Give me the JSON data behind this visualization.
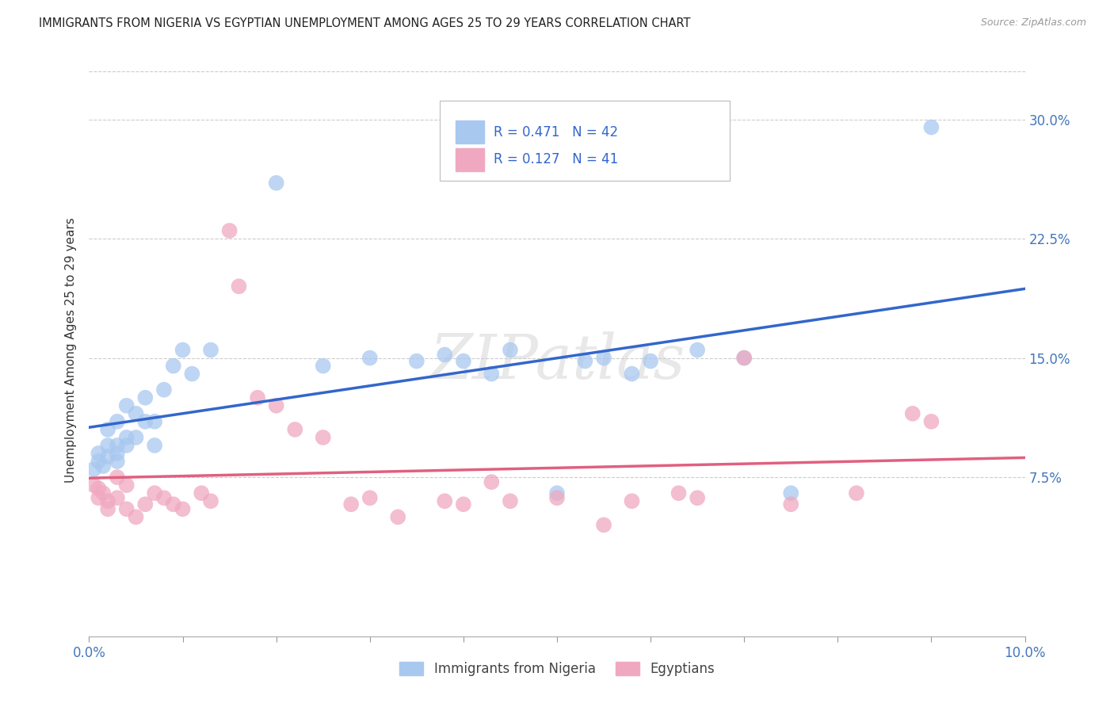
{
  "title": "IMMIGRANTS FROM NIGERIA VS EGYPTIAN UNEMPLOYMENT AMONG AGES 25 TO 29 YEARS CORRELATION CHART",
  "source": "Source: ZipAtlas.com",
  "ylabel": "Unemployment Among Ages 25 to 29 years",
  "ylabel_ticks": [
    "7.5%",
    "15.0%",
    "22.5%",
    "30.0%"
  ],
  "ylabel_values": [
    0.075,
    0.15,
    0.225,
    0.3
  ],
  "xlim": [
    0.0,
    0.1
  ],
  "ylim": [
    -0.025,
    0.335
  ],
  "legend_bottom_label1": "Immigrants from Nigeria",
  "legend_bottom_label2": "Egyptians",
  "watermark": "ZIPatlas",
  "blue_color": "#A8C8F0",
  "pink_color": "#F0A8C0",
  "line_blue": "#3366CC",
  "line_pink": "#E06080",
  "nigeria_x": [
    0.0005,
    0.001,
    0.001,
    0.0015,
    0.002,
    0.002,
    0.002,
    0.003,
    0.003,
    0.003,
    0.003,
    0.004,
    0.004,
    0.004,
    0.005,
    0.005,
    0.006,
    0.006,
    0.007,
    0.007,
    0.008,
    0.009,
    0.01,
    0.011,
    0.013,
    0.02,
    0.025,
    0.03,
    0.035,
    0.038,
    0.04,
    0.043,
    0.045,
    0.05,
    0.053,
    0.055,
    0.058,
    0.06,
    0.065,
    0.07,
    0.075,
    0.09
  ],
  "nigeria_y": [
    0.08,
    0.085,
    0.09,
    0.082,
    0.088,
    0.095,
    0.105,
    0.085,
    0.09,
    0.095,
    0.11,
    0.095,
    0.1,
    0.12,
    0.1,
    0.115,
    0.11,
    0.125,
    0.095,
    0.11,
    0.13,
    0.145,
    0.155,
    0.14,
    0.155,
    0.26,
    0.145,
    0.15,
    0.148,
    0.152,
    0.148,
    0.14,
    0.155,
    0.065,
    0.148,
    0.15,
    0.14,
    0.148,
    0.155,
    0.15,
    0.065,
    0.295
  ],
  "egypt_x": [
    0.0005,
    0.001,
    0.001,
    0.0015,
    0.002,
    0.002,
    0.003,
    0.003,
    0.004,
    0.004,
    0.005,
    0.006,
    0.007,
    0.008,
    0.009,
    0.01,
    0.012,
    0.013,
    0.015,
    0.016,
    0.018,
    0.02,
    0.022,
    0.025,
    0.028,
    0.03,
    0.033,
    0.038,
    0.04,
    0.043,
    0.045,
    0.05,
    0.055,
    0.058,
    0.063,
    0.065,
    0.07,
    0.075,
    0.082,
    0.088,
    0.09
  ],
  "egypt_y": [
    0.07,
    0.068,
    0.062,
    0.065,
    0.06,
    0.055,
    0.075,
    0.062,
    0.07,
    0.055,
    0.05,
    0.058,
    0.065,
    0.062,
    0.058,
    0.055,
    0.065,
    0.06,
    0.23,
    0.195,
    0.125,
    0.12,
    0.105,
    0.1,
    0.058,
    0.062,
    0.05,
    0.06,
    0.058,
    0.072,
    0.06,
    0.062,
    0.045,
    0.06,
    0.065,
    0.062,
    0.15,
    0.058,
    0.065,
    0.115,
    0.11
  ]
}
